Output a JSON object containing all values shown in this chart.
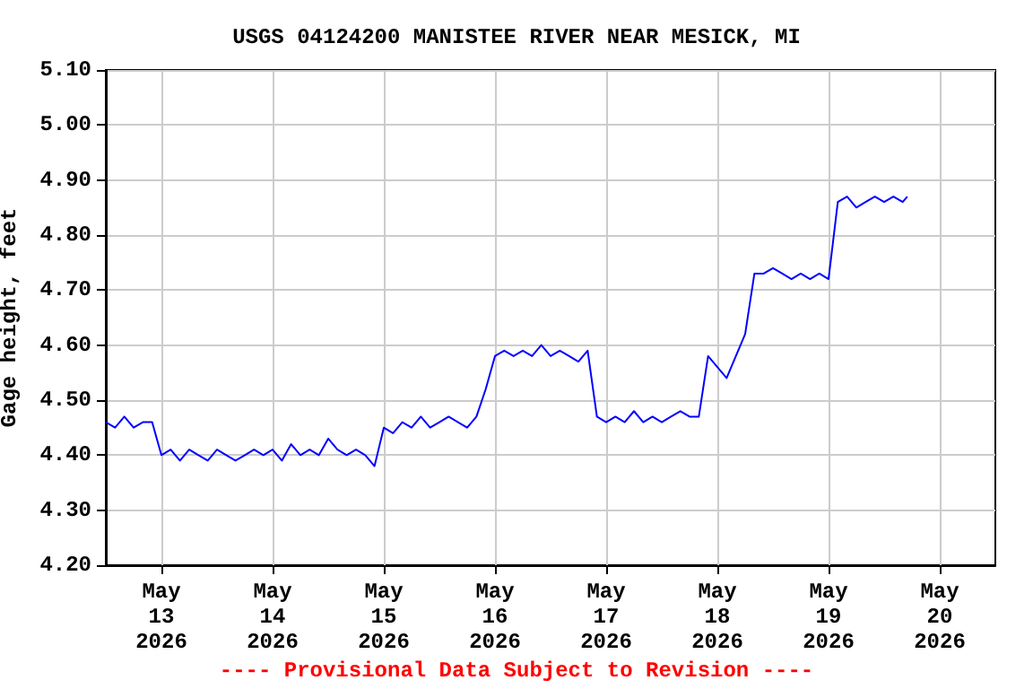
{
  "chart_data": {
    "type": "line",
    "title": "USGS 04124200 MANISTEE RIVER NEAR MESICK, MI",
    "ylabel": "Gage height, feet",
    "annotations": [
      "---- Provisional Data Subject to Revision ----"
    ],
    "x": [
      "2026-05-12T12:00",
      "2026-05-12T14:00",
      "2026-05-12T16:00",
      "2026-05-12T18:00",
      "2026-05-12T20:00",
      "2026-05-12T22:00",
      "2026-05-13T00:00",
      "2026-05-13T02:00",
      "2026-05-13T04:00",
      "2026-05-13T06:00",
      "2026-05-13T08:00",
      "2026-05-13T10:00",
      "2026-05-13T12:00",
      "2026-05-13T14:00",
      "2026-05-13T16:00",
      "2026-05-13T18:00",
      "2026-05-13T20:00",
      "2026-05-13T22:00",
      "2026-05-14T00:00",
      "2026-05-14T02:00",
      "2026-05-14T04:00",
      "2026-05-14T06:00",
      "2026-05-14T08:00",
      "2026-05-14T10:00",
      "2026-05-14T12:00",
      "2026-05-14T14:00",
      "2026-05-14T16:00",
      "2026-05-14T18:00",
      "2026-05-14T20:00",
      "2026-05-14T22:00",
      "2026-05-15T00:00",
      "2026-05-15T02:00",
      "2026-05-15T04:00",
      "2026-05-15T06:00",
      "2026-05-15T08:00",
      "2026-05-15T10:00",
      "2026-05-15T12:00",
      "2026-05-15T14:00",
      "2026-05-15T16:00",
      "2026-05-15T18:00",
      "2026-05-15T20:00",
      "2026-05-15T22:00",
      "2026-05-16T00:00",
      "2026-05-16T02:00",
      "2026-05-16T04:00",
      "2026-05-16T06:00",
      "2026-05-16T08:00",
      "2026-05-16T10:00",
      "2026-05-16T12:00",
      "2026-05-16T14:00",
      "2026-05-16T16:00",
      "2026-05-16T18:00",
      "2026-05-16T20:00",
      "2026-05-16T22:00",
      "2026-05-17T00:00",
      "2026-05-17T02:00",
      "2026-05-17T04:00",
      "2026-05-17T06:00",
      "2026-05-17T08:00",
      "2026-05-17T10:00",
      "2026-05-17T12:00",
      "2026-05-17T14:00",
      "2026-05-17T16:00",
      "2026-05-17T18:00",
      "2026-05-17T20:00",
      "2026-05-17T22:00",
      "2026-05-18T00:00",
      "2026-05-18T02:00",
      "2026-05-18T04:00",
      "2026-05-18T06:00",
      "2026-05-18T08:00",
      "2026-05-18T10:00",
      "2026-05-18T12:00",
      "2026-05-18T14:00",
      "2026-05-18T16:00",
      "2026-05-18T18:00",
      "2026-05-18T20:00",
      "2026-05-18T22:00",
      "2026-05-19T00:00",
      "2026-05-19T02:00",
      "2026-05-19T04:00",
      "2026-05-19T06:00",
      "2026-05-19T08:00",
      "2026-05-19T10:00",
      "2026-05-19T12:00",
      "2026-05-19T14:00",
      "2026-05-19T16:00",
      "2026-05-19T17:00"
    ],
    "series": [
      {
        "color": "#0000ff",
        "values": [
          4.46,
          4.45,
          4.47,
          4.45,
          4.46,
          4.46,
          4.4,
          4.41,
          4.39,
          4.41,
          4.4,
          4.39,
          4.41,
          4.4,
          4.39,
          4.4,
          4.41,
          4.4,
          4.41,
          4.39,
          4.42,
          4.4,
          4.41,
          4.4,
          4.43,
          4.41,
          4.4,
          4.41,
          4.4,
          4.38,
          4.45,
          4.44,
          4.46,
          4.45,
          4.47,
          4.45,
          4.46,
          4.47,
          4.46,
          4.45,
          4.47,
          4.52,
          4.58,
          4.59,
          4.58,
          4.59,
          4.58,
          4.6,
          4.58,
          4.59,
          4.58,
          4.57,
          4.59,
          4.47,
          4.46,
          4.47,
          4.46,
          4.48,
          4.46,
          4.47,
          4.46,
          4.47,
          4.48,
          4.47,
          4.47,
          4.58,
          4.56,
          4.54,
          4.58,
          4.62,
          4.73,
          4.73,
          4.74,
          4.73,
          4.72,
          4.73,
          4.72,
          4.73,
          4.72,
          4.86,
          4.87,
          4.85,
          4.86,
          4.87,
          4.86,
          4.87,
          4.86,
          4.87
        ]
      }
    ],
    "xlim": [
      "2026-05-12T12:00",
      "2026-05-20T12:00"
    ],
    "xticks": [
      {
        "value": "2026-05-13",
        "label": "May\n13\n2026"
      },
      {
        "value": "2026-05-14",
        "label": "May\n14\n2026"
      },
      {
        "value": "2026-05-15",
        "label": "May\n15\n2026"
      },
      {
        "value": "2026-05-16",
        "label": "May\n16\n2026"
      },
      {
        "value": "2026-05-17",
        "label": "May\n17\n2026"
      },
      {
        "value": "2026-05-18",
        "label": "May\n18\n2026"
      },
      {
        "value": "2026-05-19",
        "label": "May\n19\n2026"
      },
      {
        "value": "2026-05-20",
        "label": "May\n20\n2026"
      }
    ],
    "ylim": [
      4.2,
      5.1
    ],
    "yticks": [
      {
        "value": 4.2,
        "label": "4.20"
      },
      {
        "value": 4.3,
        "label": "4.30"
      },
      {
        "value": 4.4,
        "label": "4.40"
      },
      {
        "value": 4.5,
        "label": "4.50"
      },
      {
        "value": 4.6,
        "label": "4.60"
      },
      {
        "value": 4.7,
        "label": "4.70"
      },
      {
        "value": 4.8,
        "label": "4.80"
      },
      {
        "value": 4.9,
        "label": "4.90"
      },
      {
        "value": 5.0,
        "label": "5.00"
      },
      {
        "value": 5.1,
        "label": "5.10"
      }
    ],
    "grid": true,
    "marker": "none",
    "line_style": "solid"
  }
}
